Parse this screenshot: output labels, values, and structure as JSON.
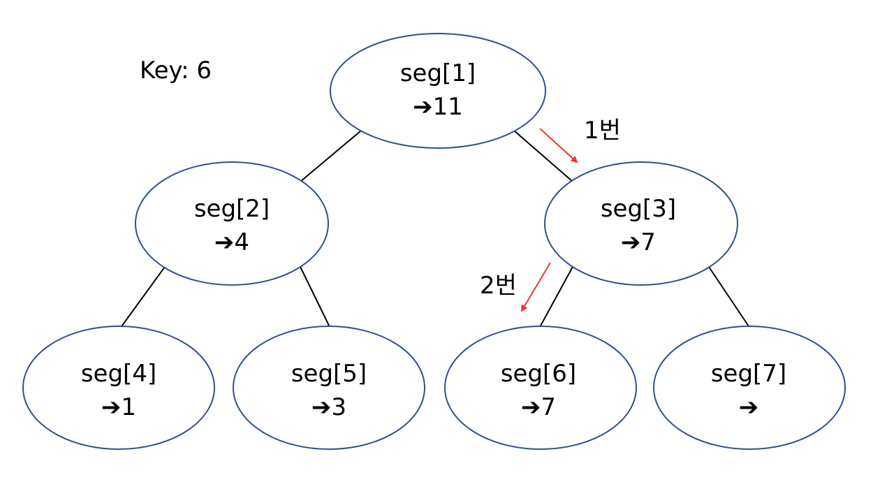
{
  "key_label": "Key: 6",
  "step_labels": {
    "step1": "1번",
    "step2": "2번"
  },
  "arrow_glyph": "➔",
  "colors": {
    "node_stroke": "#2f4f8f",
    "edge": "#000000",
    "highlight_arrow": "#e8392a"
  },
  "nodes": [
    {
      "id": "seg1",
      "label": "seg[1]",
      "value": "11"
    },
    {
      "id": "seg2",
      "label": "seg[2]",
      "value": "4"
    },
    {
      "id": "seg3",
      "label": "seg[3]",
      "value": "7"
    },
    {
      "id": "seg4",
      "label": "seg[4]",
      "value": "1"
    },
    {
      "id": "seg5",
      "label": "seg[5]",
      "value": "3"
    },
    {
      "id": "seg6",
      "label": "seg[6]",
      "value": "7"
    },
    {
      "id": "seg7",
      "label": "seg[7]",
      "value": ""
    }
  ]
}
